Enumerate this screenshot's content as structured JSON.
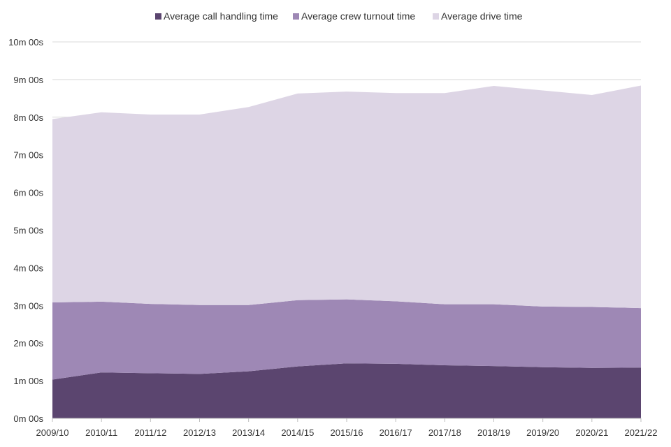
{
  "chart_data": {
    "type": "area",
    "stacked": true,
    "title": "",
    "xlabel": "",
    "ylabel": "",
    "categories": [
      "2009/10",
      "2010/11",
      "2011/12",
      "2012/13",
      "2013/14",
      "2014/15",
      "2015/16",
      "2016/17",
      "2017/18",
      "2018/19",
      "2019/20",
      "2020/21",
      "2021/22"
    ],
    "series": [
      {
        "name": "Average call handling time",
        "color": "#5b456f",
        "values": [
          1.03,
          1.22,
          1.2,
          1.18,
          1.25,
          1.38,
          1.46,
          1.45,
          1.41,
          1.39,
          1.36,
          1.34,
          1.35
        ]
      },
      {
        "name": "Average crew turnout time",
        "color": "#9e88b5",
        "values": [
          2.05,
          1.88,
          1.84,
          1.83,
          1.76,
          1.76,
          1.7,
          1.66,
          1.62,
          1.64,
          1.61,
          1.62,
          1.58
        ]
      },
      {
        "name": "Average drive time",
        "color": "#ddd5e5",
        "values": [
          4.87,
          5.03,
          5.03,
          5.06,
          5.26,
          5.49,
          5.52,
          5.53,
          5.61,
          5.8,
          5.74,
          5.63,
          5.91
        ]
      }
    ],
    "ylim": [
      0,
      10
    ],
    "y_ticks": [
      "0m 00s",
      "1m 00s",
      "2m 00s",
      "3m 00s",
      "4m 00s",
      "5m 00s",
      "6m 00s",
      "7m 00s",
      "8m 00s",
      "9m 00s",
      "10m 00s"
    ],
    "grid": true,
    "legend_position": "top"
  }
}
